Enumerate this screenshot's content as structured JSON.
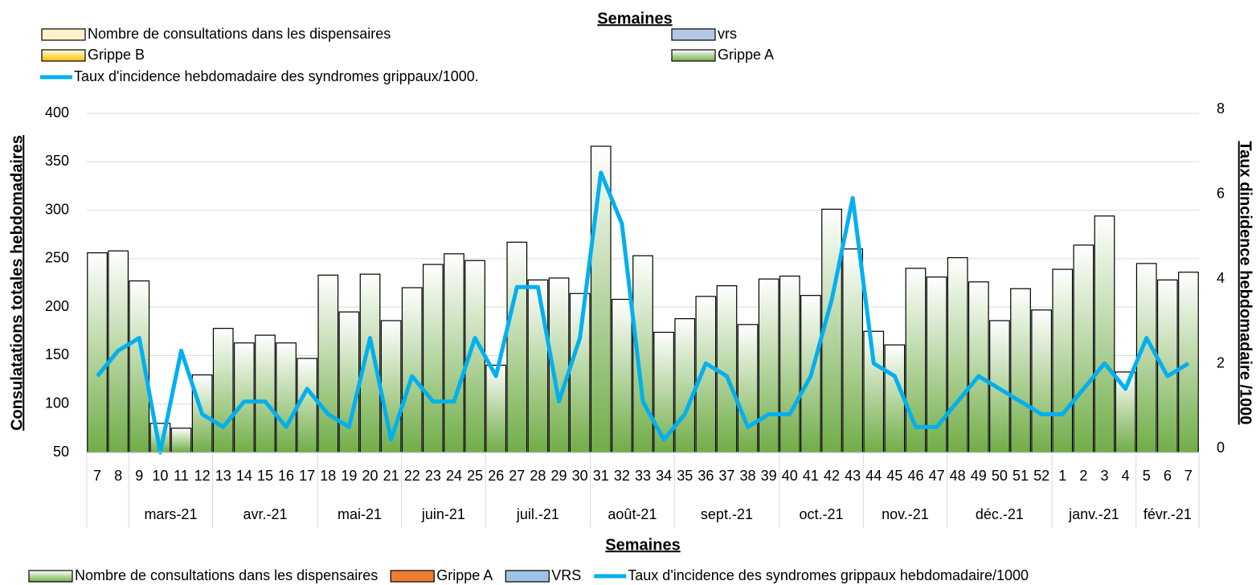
{
  "chart_data": {
    "type": "bar_line",
    "top_legend_title": "Semaines",
    "legend_top": [
      {
        "name": "Nombre de consultations dans les dispensaires",
        "color": "#fff2cc"
      },
      {
        "name": "vrs",
        "color": "#b4c7e7"
      },
      {
        "name": "Grippe B",
        "color": "#ffc000"
      },
      {
        "name": "Grippe A",
        "color": "#70ad47"
      },
      {
        "name": "Taux d'incidence hebdomadaire des syndromes grippaux/1000.",
        "color": "#00b0f0"
      }
    ],
    "x_label": "Semaines",
    "y_label": "Consulatations totales hebdomadaires",
    "y2_label": "Taux dincidence hebdomadaire /1000",
    "categories": [
      "7",
      "8",
      "9",
      "10",
      "11",
      "12",
      "13",
      "14",
      "15",
      "16",
      "17",
      "18",
      "19",
      "20",
      "21",
      "22",
      "23",
      "24",
      "25",
      "26",
      "27",
      "28",
      "29",
      "30",
      "31",
      "32",
      "33",
      "34",
      "35",
      "36",
      "37",
      "38",
      "39",
      "40",
      "41",
      "42",
      "43",
      "44",
      "45",
      "46",
      "47",
      "48",
      "49",
      "50",
      "51",
      "52",
      "1",
      "2",
      "3",
      "4",
      "5",
      "6",
      "7"
    ],
    "months": [
      null,
      null,
      "mars-21",
      "mars-21",
      "mars-21",
      "mars-21",
      "avr.-21",
      "avr.-21",
      "avr.-21",
      "avr.-21",
      "avr.-21",
      "mai-21",
      "mai-21",
      "mai-21",
      "mai-21",
      "juin-21",
      "juin-21",
      "juin-21",
      "juin-21",
      "juil.-21",
      "juil.-21",
      "juil.-21",
      "juil.-21",
      "juil.-21",
      "août-21",
      "août-21",
      "août-21",
      "août-21",
      "sept.-21",
      "sept.-21",
      "sept.-21",
      "sept.-21",
      "sept.-21",
      "oct.-21",
      "oct.-21",
      "oct.-21",
      "oct.-21",
      "nov.-21",
      "nov.-21",
      "nov.-21",
      "nov.-21",
      "déc.-21",
      "déc.-21",
      "déc.-21",
      "déc.-21",
      "déc.-21",
      "janv.-21",
      "janv.-21",
      "janv.-21",
      "janv.-21",
      "févr.-21",
      "févr.-21",
      "févr.-21"
    ],
    "series": [
      {
        "name": "Nombre de consultations dans les dispensaires",
        "type": "bar",
        "color": "#70ad47",
        "values": [
          256,
          258,
          227,
          80,
          75,
          130,
          178,
          163,
          171,
          163,
          147,
          233,
          195,
          234,
          186,
          220,
          244,
          255,
          248,
          140,
          267,
          228,
          230,
          214,
          366,
          208,
          253,
          174,
          188,
          211,
          222,
          182,
          229,
          232,
          212,
          301,
          260,
          175,
          161,
          240,
          231,
          251,
          226,
          186,
          219,
          197,
          239,
          264,
          294,
          133,
          245,
          228,
          236
        ]
      },
      {
        "name": "Taux d'incidence des syndromes grippaux hebdomadaire/1000",
        "type": "line",
        "axis": "y2",
        "color": "#00b0f0",
        "values": [
          1.8,
          2.4,
          2.7,
          0,
          2.4,
          0.9,
          0.6,
          1.2,
          1.2,
          0.6,
          1.5,
          0.9,
          0.6,
          2.7,
          0.3,
          1.8,
          1.2,
          1.2,
          2.7,
          1.8,
          3.9,
          3.9,
          1.2,
          2.7,
          6.6,
          5.4,
          1.2,
          0.3,
          0.9,
          2.1,
          1.8,
          0.6,
          0.9,
          0.9,
          1.8,
          3.6,
          6.0,
          2.1,
          1.8,
          0.6,
          0.6,
          1.2,
          1.8,
          1.5,
          1.2,
          0.9,
          0.9,
          1.5,
          2.1,
          1.5,
          2.7,
          1.8,
          2.1
        ]
      }
    ],
    "legend_bottom": [
      {
        "name": "Grippe A",
        "color": "#ed7d31"
      },
      {
        "name": "VRS",
        "color": "#9dc3e6"
      }
    ],
    "ylim": [
      50,
      400
    ],
    "yticks": [
      50,
      100,
      150,
      200,
      250,
      300,
      350,
      400
    ],
    "y2lim": [
      0,
      8
    ],
    "y2ticks": [
      0,
      2,
      4,
      6,
      8
    ],
    "grid": true
  }
}
